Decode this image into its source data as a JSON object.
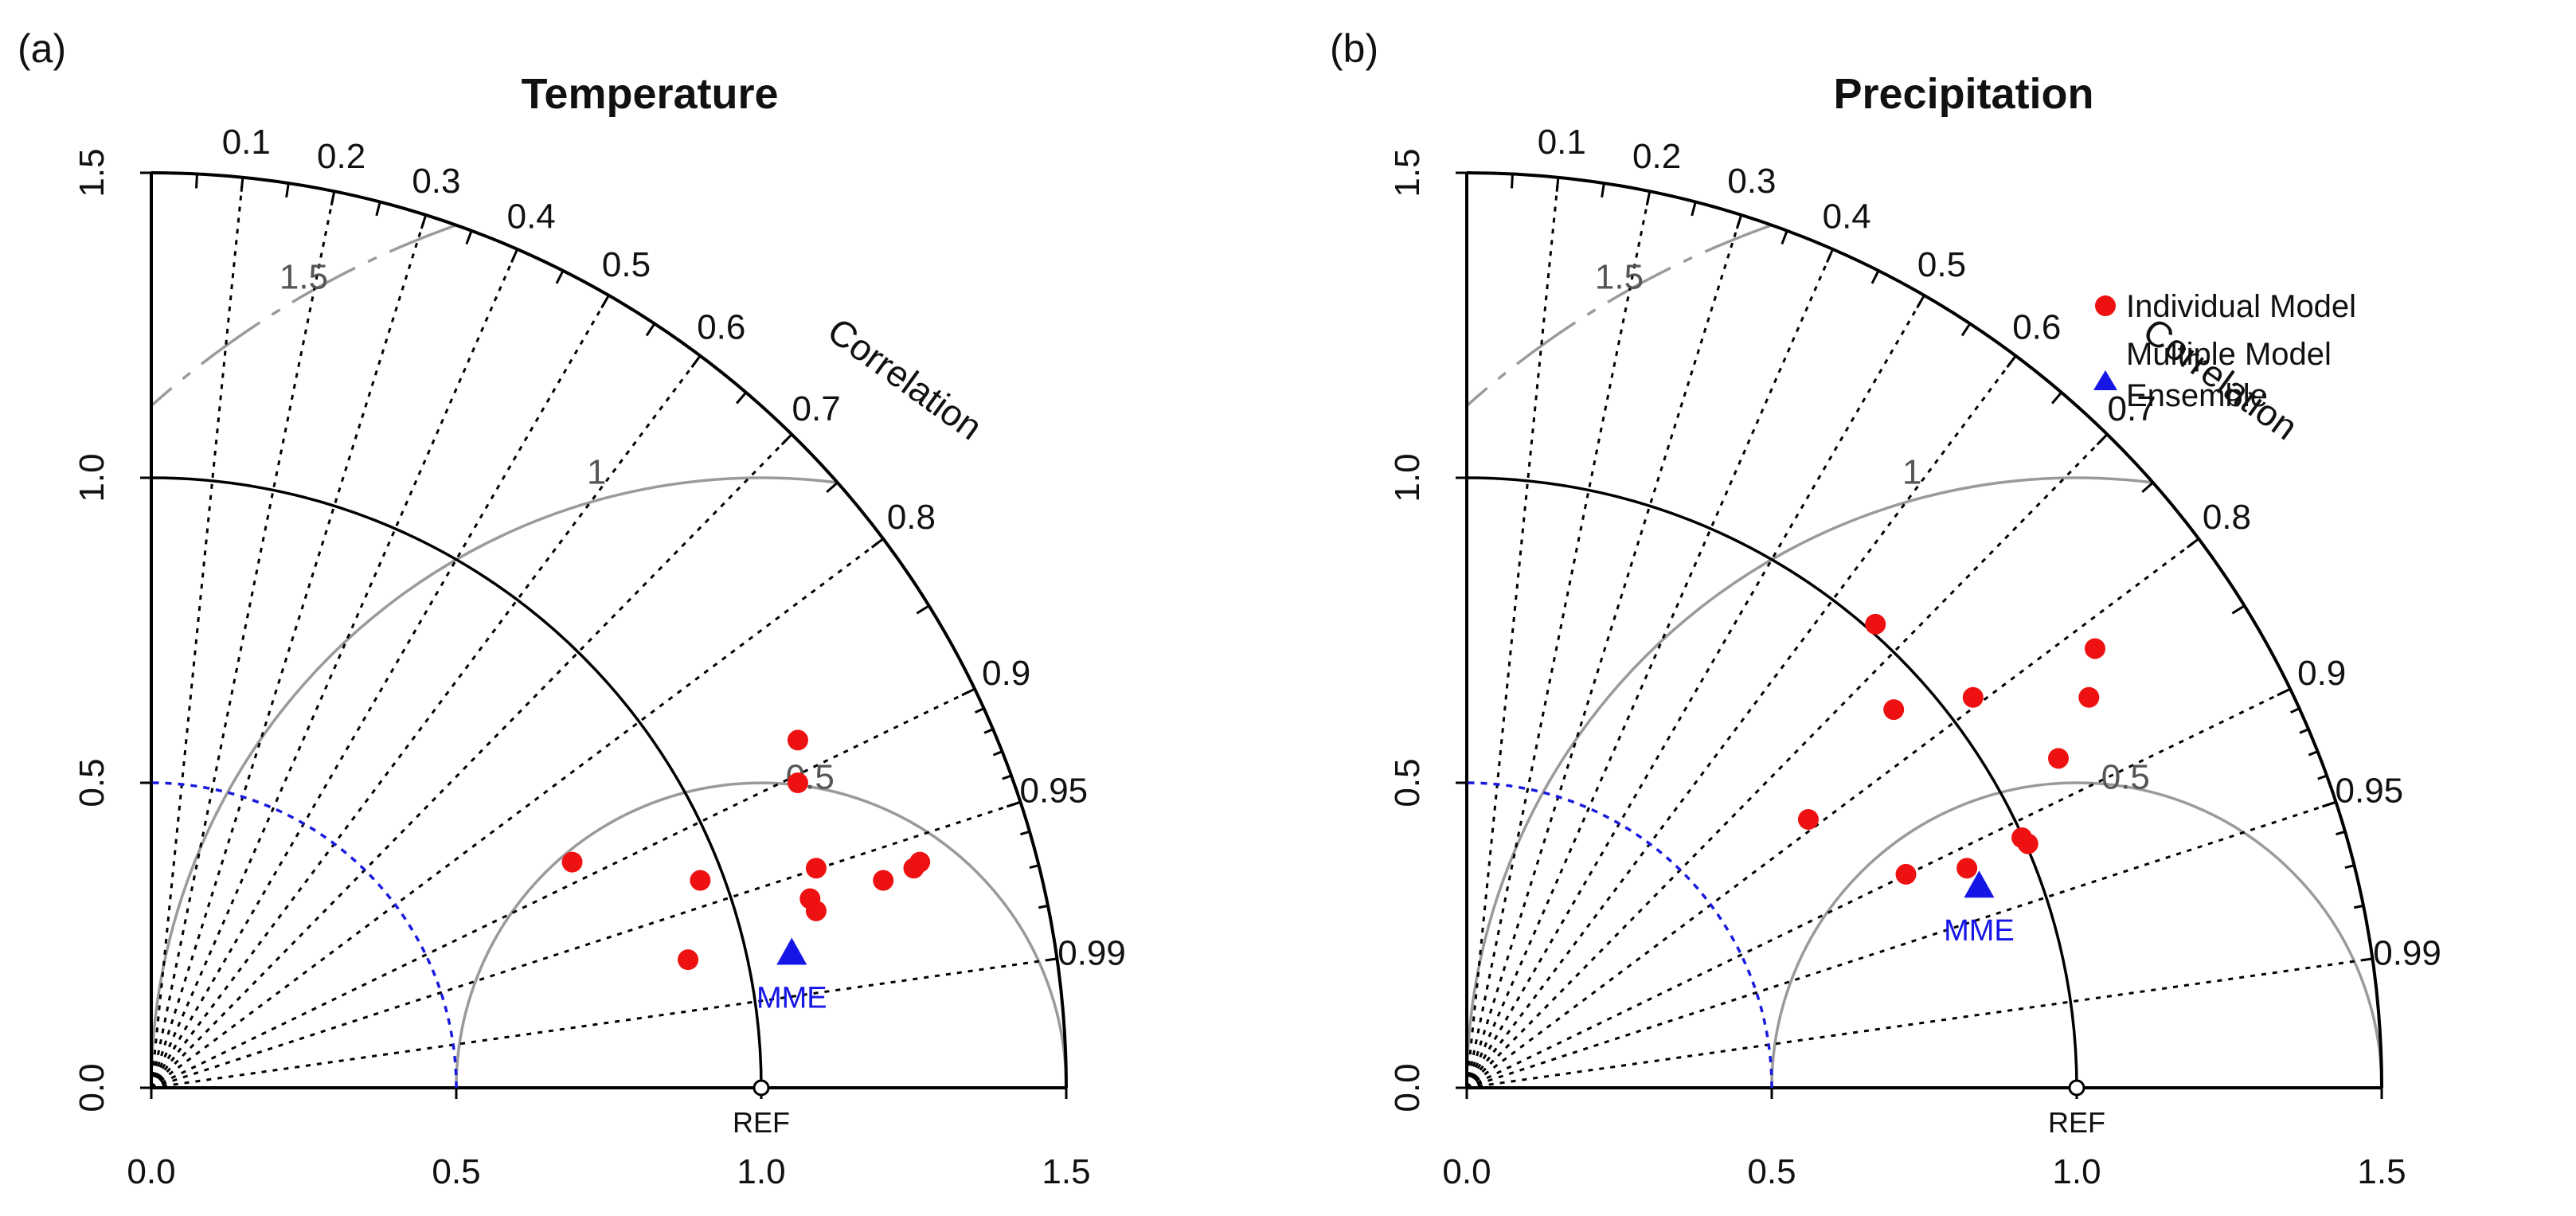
{
  "colors": {
    "axis": "#000000",
    "rmsd_arc": "#9a9a9a",
    "sd_half_ref": "#1a1adf",
    "individual_model": "#ee1111",
    "mme": "#1515e6"
  },
  "chart_data": [
    {
      "type": "scatter",
      "subtype": "taylor-diagram",
      "panel_label": "(a)",
      "title": "Temperature",
      "axis_label_correlation": "Correlation",
      "sd_max": 1.5,
      "x_ticks": [
        "0.0",
        "0.5",
        "1.0",
        "1.5"
      ],
      "y_ticks": [
        "0.0",
        "0.5",
        "1.0",
        "1.5"
      ],
      "correlation_ticks": [
        "0.1",
        "0.2",
        "0.3",
        "0.4",
        "0.5",
        "0.6",
        "0.7",
        "0.8",
        "0.9",
        "0.95",
        "0.99"
      ],
      "rmsd_labels": [
        "0.5",
        "1",
        "1.5"
      ],
      "ref_label": "REF",
      "ref_sd": 1.0,
      "mme_label": "MME",
      "individual_models": [
        {
          "x": 0.69,
          "y": 0.37
        },
        {
          "x": 0.9,
          "y": 0.34
        },
        {
          "x": 0.88,
          "y": 0.21
        },
        {
          "x": 1.06,
          "y": 0.57
        },
        {
          "x": 1.06,
          "y": 0.5
        },
        {
          "x": 1.08,
          "y": 0.31
        },
        {
          "x": 1.09,
          "y": 0.36
        },
        {
          "x": 1.09,
          "y": 0.29
        },
        {
          "x": 1.2,
          "y": 0.34
        },
        {
          "x": 1.25,
          "y": 0.36
        },
        {
          "x": 1.26,
          "y": 0.37
        }
      ],
      "mme": {
        "x": 1.05,
        "y": 0.22
      }
    },
    {
      "type": "scatter",
      "subtype": "taylor-diagram",
      "panel_label": "(b)",
      "title": "Precipitation",
      "axis_label_correlation": "Correlation",
      "sd_max": 1.5,
      "x_ticks": [
        "0.0",
        "0.5",
        "1.0",
        "1.5"
      ],
      "y_ticks": [
        "0.0",
        "0.5",
        "1.0",
        "1.5"
      ],
      "correlation_ticks": [
        "0.1",
        "0.2",
        "0.3",
        "0.4",
        "0.5",
        "0.6",
        "0.7",
        "0.8",
        "0.9",
        "0.95",
        "0.99"
      ],
      "rmsd_labels": [
        "0.5",
        "1",
        "1.5"
      ],
      "ref_label": "REF",
      "ref_sd": 1.0,
      "mme_label": "MME",
      "individual_models": [
        {
          "x": 0.56,
          "y": 0.44
        },
        {
          "x": 0.67,
          "y": 0.76
        },
        {
          "x": 0.7,
          "y": 0.62
        },
        {
          "x": 0.72,
          "y": 0.35
        },
        {
          "x": 0.83,
          "y": 0.64
        },
        {
          "x": 0.82,
          "y": 0.36
        },
        {
          "x": 0.91,
          "y": 0.41
        },
        {
          "x": 0.92,
          "y": 0.4
        },
        {
          "x": 0.97,
          "y": 0.54
        },
        {
          "x": 1.02,
          "y": 0.64
        },
        {
          "x": 1.03,
          "y": 0.72
        }
      ],
      "mme": {
        "x": 0.84,
        "y": 0.33
      },
      "legend": {
        "individual_label": "Individual Model",
        "mme_label_line1": "Multiple Model",
        "mme_label_line2": "Ensemble"
      }
    }
  ]
}
